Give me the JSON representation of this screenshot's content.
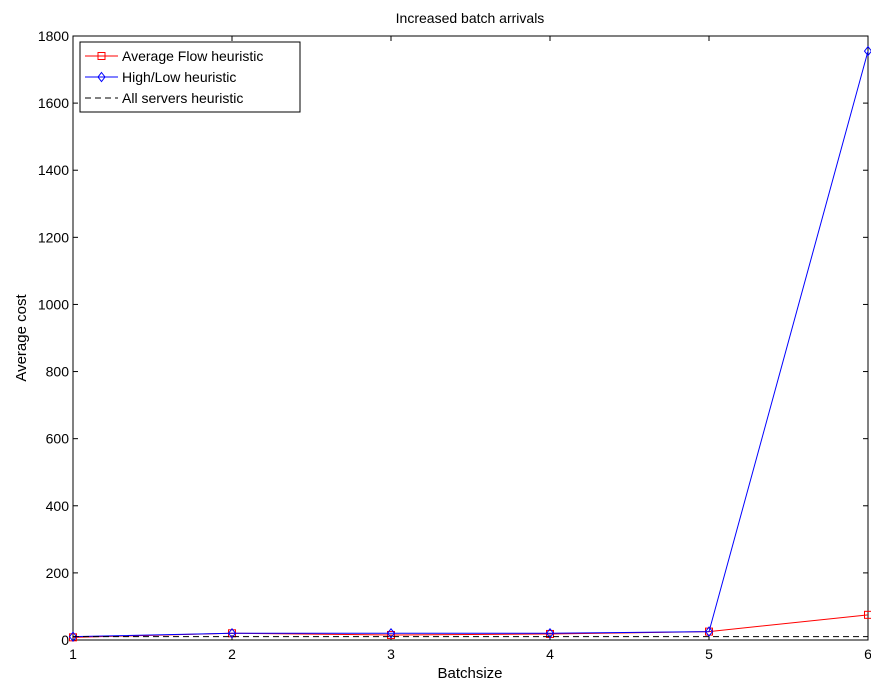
{
  "chart_data": {
    "type": "line",
    "title": "Increased batch arrivals",
    "xlabel": "Batchsize",
    "ylabel": "Average cost",
    "xlim": [
      1,
      6
    ],
    "ylim": [
      0,
      1800
    ],
    "x_ticks": [
      1,
      2,
      3,
      4,
      5,
      6
    ],
    "y_ticks": [
      0,
      200,
      400,
      600,
      800,
      1000,
      1200,
      1400,
      1600,
      1800
    ],
    "grid": false,
    "legend_position": "top-left",
    "x": [
      1,
      2,
      3,
      4,
      5,
      6
    ],
    "series": [
      {
        "name": "Average Flow heuristic",
        "color": "#ff0000",
        "line": "solid",
        "marker": "square",
        "values": [
          8,
          20,
          15,
          18,
          25,
          75
        ]
      },
      {
        "name": "High/Low heuristic",
        "color": "#0000ff",
        "line": "solid",
        "marker": "diamond",
        "values": [
          10,
          20,
          20,
          20,
          25,
          1755
        ]
      },
      {
        "name": "All servers heuristic",
        "color": "#000000",
        "line": "dashed",
        "marker": "none",
        "values": [
          10,
          10,
          10,
          10,
          10,
          10
        ]
      }
    ]
  }
}
